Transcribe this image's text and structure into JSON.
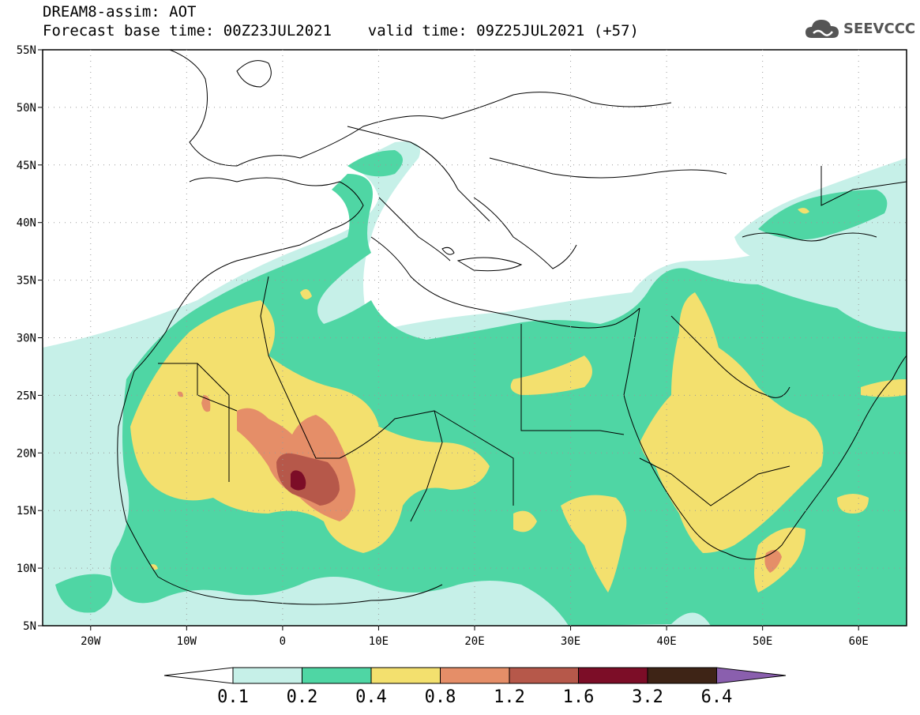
{
  "header": {
    "line1": "DREAM8-assim: AOT",
    "line2": "Forecast base time: 00Z23JUL2021    valid time: 09Z25JUL2021 (+57)"
  },
  "logo": {
    "text": "SEEVCCC",
    "icon": "cloud-icon"
  },
  "map": {
    "lon_range": [
      -25,
      65
    ],
    "lat_range": [
      5,
      55
    ],
    "lat_ticks": [
      "5N",
      "10N",
      "15N",
      "20N",
      "25N",
      "30N",
      "35N",
      "40N",
      "45N",
      "50N",
      "55N"
    ],
    "lon_ticks": [
      "20W",
      "10W",
      "0",
      "10E",
      "20E",
      "30E",
      "40E",
      "50E",
      "60E"
    ]
  },
  "colorbar": {
    "labels": [
      "0.1",
      "0.2",
      "0.4",
      "0.8",
      "1.2",
      "1.6",
      "3.2",
      "6.4"
    ],
    "colors": [
      "#c6f0e8",
      "#4fd6a4",
      "#f3e06e",
      "#e58e68",
      "#b6584a",
      "#7c0d27",
      "#3e2416",
      "#8a5fae"
    ]
  }
}
